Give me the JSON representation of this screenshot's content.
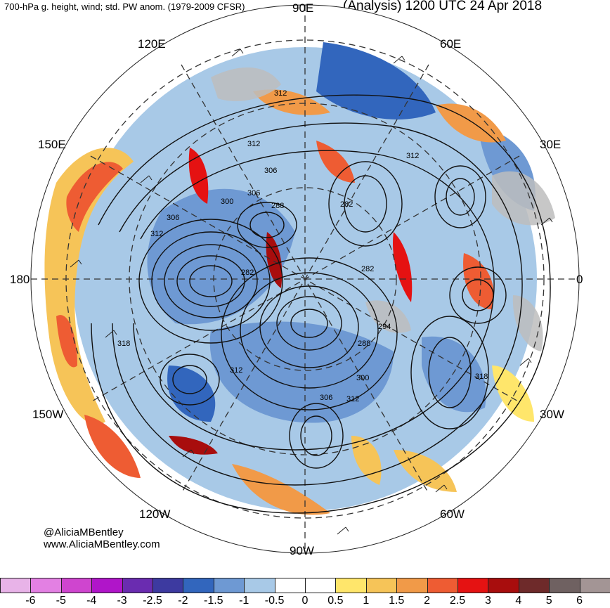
{
  "header": {
    "left_title": "700-hPa g. height, wind; std. PW anom. (1979-2009 CFSR)",
    "right_title": "(Analysis) 1200 UTC 24 Apr 2018"
  },
  "map": {
    "projection": "north-polar-stereographic",
    "longitude_labels": [
      "90E",
      "60E",
      "30E",
      "0",
      "30W",
      "60W",
      "90W",
      "120W",
      "150W",
      "180",
      "150E",
      "120E"
    ],
    "height_contour_labels": [
      "312",
      "312",
      "312",
      "306",
      "306",
      "300",
      "288",
      "282",
      "282",
      "306",
      "312",
      "318",
      "282",
      "294",
      "288",
      "300",
      "306",
      "312",
      "318",
      "312"
    ]
  },
  "credits": {
    "handle": "@AliciaMBentley",
    "website": "www.AliciaMBentley.com"
  },
  "colorbar": {
    "colors": [
      "#e8b3e8",
      "#e380e3",
      "#cf45cf",
      "#b015c9",
      "#6a2cb0",
      "#3d3aa0",
      "#3266bd",
      "#6e99d3",
      "#a8c9e7",
      "#ffffff",
      "#ffffff",
      "#ffe66b",
      "#f6c458",
      "#f19a48",
      "#ee5c33",
      "#e51212",
      "#a80d0d",
      "#6e2a2a",
      "#6f6161",
      "#a39595"
    ],
    "tick_labels": [
      "-6",
      "-5",
      "-4",
      "-3",
      "-2.5",
      "-2",
      "-1.5",
      "-1",
      "-0.5",
      "0",
      "0.5",
      "1",
      "1.5",
      "2",
      "2.5",
      "3",
      "4",
      "5",
      "6"
    ]
  }
}
